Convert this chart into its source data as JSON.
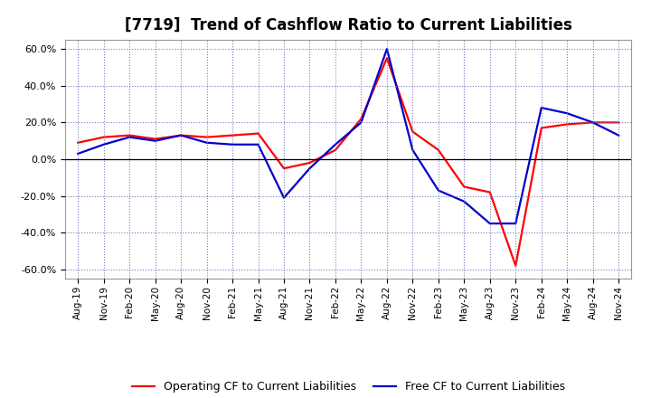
{
  "title": "[7719]  Trend of Cashflow Ratio to Current Liabilities",
  "x_labels": [
    "Aug-19",
    "Nov-19",
    "Feb-20",
    "May-20",
    "Aug-20",
    "Nov-20",
    "Feb-21",
    "May-21",
    "Aug-21",
    "Nov-21",
    "Feb-22",
    "May-22",
    "Aug-22",
    "Nov-22",
    "Feb-23",
    "May-23",
    "Aug-23",
    "Nov-23",
    "Feb-24",
    "May-24",
    "Aug-24",
    "Nov-24"
  ],
  "operating_cf": [
    9.0,
    12.0,
    13.0,
    11.0,
    13.0,
    12.0,
    13.0,
    14.0,
    -5.0,
    -2.0,
    5.0,
    22.0,
    55.0,
    15.0,
    5.0,
    -15.0,
    -18.0,
    -58.0,
    17.0,
    19.0,
    20.0,
    20.0
  ],
  "free_cf": [
    3.0,
    8.0,
    12.0,
    10.0,
    13.0,
    9.0,
    8.0,
    8.0,
    -21.0,
    -5.0,
    8.0,
    20.0,
    60.0,
    5.0,
    -17.0,
    -23.0,
    -35.0,
    -35.0,
    28.0,
    25.0,
    20.0,
    13.0
  ],
  "operating_cf_color": "#ff0000",
  "free_cf_color": "#0000cd",
  "ylim": [
    -65,
    65
  ],
  "yticks": [
    -60,
    -40,
    -20,
    0,
    20,
    40,
    60
  ],
  "background_color": "#ffffff",
  "plot_bg_color": "#ffffff",
  "grid_color": "#7777bb",
  "legend_operating": "Operating CF to Current Liabilities",
  "legend_free": "Free CF to Current Liabilities",
  "title_fontsize": 12,
  "line_width": 1.6
}
